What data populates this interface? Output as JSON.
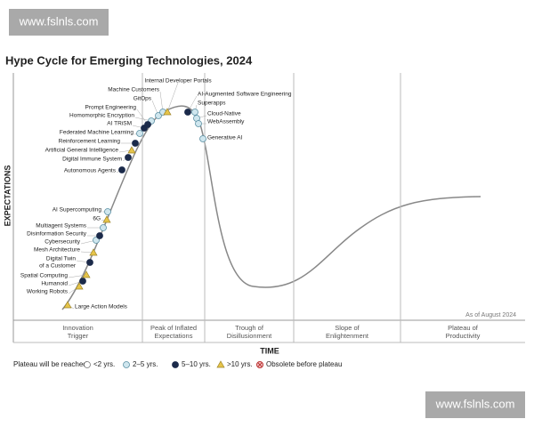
{
  "title": "Hype Cycle for Emerging Technologies, 2024",
  "watermarks": [
    "www.fslnls.com",
    "www.fslnls.com"
  ],
  "y_axis_label": "EXPECTATIONS",
  "x_axis_label": "TIME",
  "as_of": "As of August 2024",
  "phases": [
    [
      "Innovation",
      "Trigger"
    ],
    [
      "Peak of Inflated",
      "Expectations"
    ],
    [
      "Trough of",
      "Disillusionment"
    ],
    [
      "Slope of",
      "Enlightenment"
    ],
    [
      "Plateau of",
      "Productivity"
    ]
  ],
  "legend": {
    "title": "Plateau will be reached:",
    "groups": [
      {
        "label": "<2 yrs.",
        "items": []
      },
      {
        "label": "2–5 yrs.",
        "items": [
          "AI Supercomputing",
          "Multiagent Systems",
          "Cybersecurity",
          "Federated Machine Learning",
          "Homomorphic Encryption",
          "GitOps",
          "Machine Customers",
          "Superapps",
          "Cloud-Native",
          "WebAssembly",
          "Generative AI"
        ]
      },
      {
        "label": "5–10 yrs.",
        "items": [
          "Humanoid",
          [
            "Digital Twin",
            "of a Customer"
          ],
          "Disinformation Security",
          "Autonomous Agents",
          "Digital Immune System",
          "Reinforcement Learning",
          "AI TRiSM",
          "Prompt Engineering",
          "AI-Augmented Software Engineering"
        ]
      },
      {
        "label": ">10 yrs.",
        "items": [
          "Large Action Models",
          "Working Robots",
          "Spatial Computing",
          "Mesh Architecture",
          "6G",
          "Artificial General Intelligence",
          "Internal Developer Portals"
        ]
      },
      {
        "label": "Obsolete before plateau",
        "items": []
      }
    ]
  }
}
